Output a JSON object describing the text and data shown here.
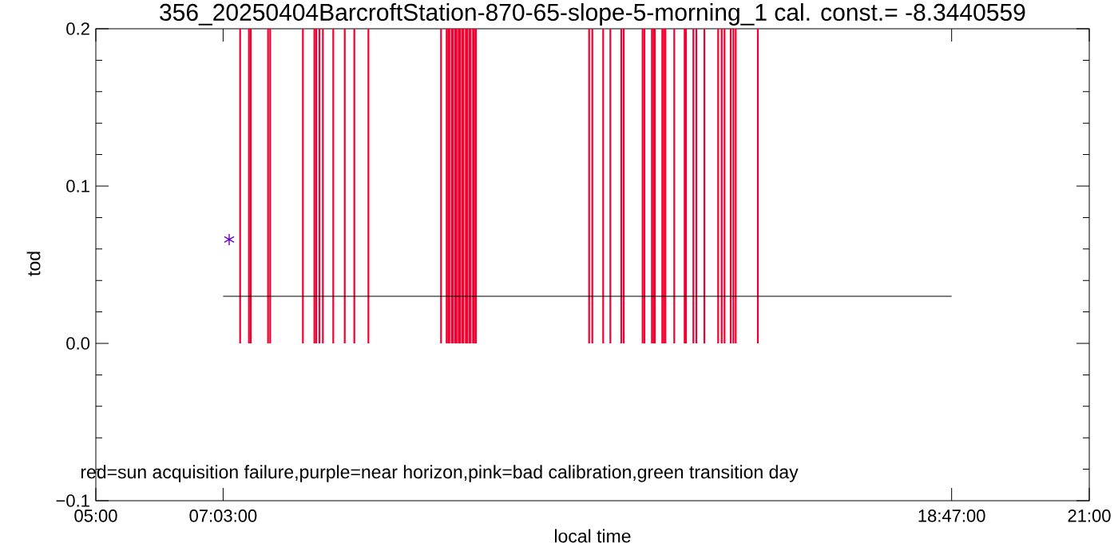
{
  "chart_data": {
    "type": "bar",
    "title": "356_20250404BarcroftStation-870-65-slope-5-morning_1 cal. const.= -8.3440559",
    "xlabel": "local time",
    "ylabel": "tod",
    "annotations": [
      "red=sun acquisition failure,purple=near horizon,pink=bad calibration,green transition day"
    ],
    "xlim": [
      5,
      21
    ],
    "xticks": [
      {
        "value": 5,
        "label": "05:00"
      },
      {
        "value": 7.05,
        "label": "07:03:00"
      },
      {
        "value": 18.7833,
        "label": "18:47:00"
      },
      {
        "value": 21,
        "label": "21:00"
      }
    ],
    "ylim": [
      -0.1,
      0.2
    ],
    "yticks": [
      {
        "value": -0.1,
        "label": "−0.1"
      },
      {
        "value": -0.08,
        "label": null
      },
      {
        "value": -0.06,
        "label": null
      },
      {
        "value": -0.04,
        "label": null
      },
      {
        "value": -0.02,
        "label": null
      },
      {
        "value": 0,
        "label": "0.0"
      },
      {
        "value": 0.02,
        "label": null
      },
      {
        "value": 0.04,
        "label": null
      },
      {
        "value": 0.06,
        "label": null
      },
      {
        "value": 0.08,
        "label": null
      },
      {
        "value": 0.1,
        "label": "0.1"
      },
      {
        "value": 0.12,
        "label": null
      },
      {
        "value": 0.14,
        "label": null
      },
      {
        "value": 0.16,
        "label": null
      },
      {
        "value": 0.18,
        "label": null
      },
      {
        "value": 0.2,
        "label": "0.2"
      }
    ],
    "series": [
      {
        "color": "#f00030",
        "x": [
          7.324,
          7.466,
          7.495,
          7.774,
          7.808,
          8.335,
          8.52,
          8.55,
          8.601,
          8.657,
          8.824,
          9.009,
          9.163,
          9.39,
          10.56,
          10.65,
          10.676,
          10.694,
          10.732,
          10.753,
          10.788,
          10.81,
          10.843,
          10.865,
          10.9,
          10.92,
          10.959,
          10.981,
          11.015,
          11.036,
          11.075,
          11.093,
          11.122,
          12.945,
          12.996,
          13.171,
          13.287,
          13.463,
          13.502,
          13.806,
          13.836,
          13.956,
          13.981,
          14.003,
          14.123,
          14.149,
          14.174,
          14.316,
          14.483,
          14.505,
          14.624,
          14.672,
          14.801,
          15.023,
          15.08,
          15.126,
          15.225,
          15.268,
          15.306,
          15.662
        ],
        "values": [
          0.2,
          0.2,
          0.2,
          0.2,
          0.2,
          0.2,
          0.2,
          0.2,
          0.2,
          0.2,
          0.2,
          0.2,
          0.2,
          0.2,
          0.2,
          0.2,
          0.2,
          0.2,
          0.2,
          0.2,
          0.2,
          0.2,
          0.2,
          0.2,
          0.2,
          0.2,
          0.2,
          0.2,
          0.2,
          0.2,
          0.2,
          0.2,
          0.2,
          0.2,
          0.2,
          0.2,
          0.2,
          0.2,
          0.2,
          0.2,
          0.2,
          0.2,
          0.2,
          0.2,
          0.2,
          0.2,
          0.2,
          0.2,
          0.2,
          0.2,
          0.2,
          0.2,
          0.2,
          0.2,
          0.2,
          0.2,
          0.2,
          0.2,
          0.2,
          0.2
        ]
      },
      {
        "type": "line",
        "color": "#000000",
        "x": [
          7.05,
          18.7833
        ],
        "values": [
          0.03,
          0.03
        ]
      },
      {
        "type": "scatter",
        "color": "#7000c0",
        "marker": "cross",
        "x": [
          7.148
        ],
        "values": [
          0.066
        ]
      }
    ]
  }
}
